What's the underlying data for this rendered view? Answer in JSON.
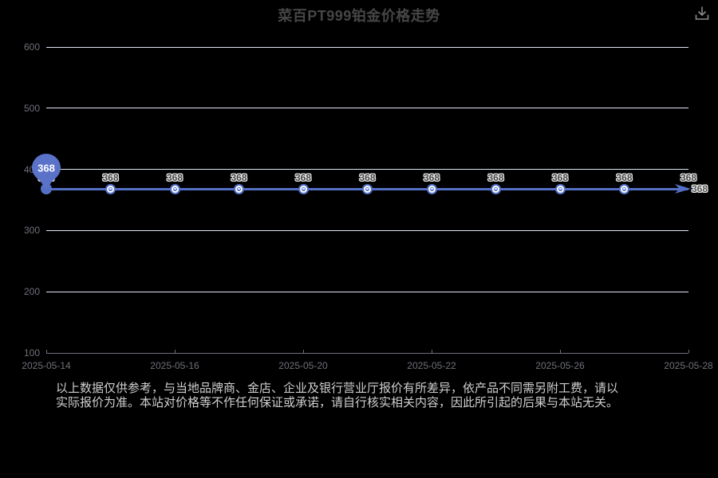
{
  "header": {
    "title": "菜百PT999铂金价格走势"
  },
  "chart_data": {
    "type": "line",
    "title": "菜百PT999铂金价格走势",
    "x_tick_labels": [
      "2025-05-14",
      "2025-05-16",
      "2025-05-20",
      "2025-05-22",
      "2025-05-26",
      "2025-05-28"
    ],
    "y_tick_labels": [
      "100",
      "200",
      "300",
      "400",
      "500",
      "600"
    ],
    "ylim": [
      100,
      600
    ],
    "xlabel": "",
    "ylabel": "",
    "grid": true,
    "legend_position": "none",
    "num_points": 11,
    "values": [
      368,
      368,
      368,
      368,
      368,
      368,
      368,
      368,
      368,
      368,
      368
    ],
    "end_label": "368",
    "pin": {
      "point_index": 0,
      "label": "368"
    },
    "colors": {
      "series": "#5470C6",
      "grid_line": "#E0E6F1",
      "axis": "#6E7079",
      "background": "#000000",
      "pin_fill": "#5B72C9",
      "icon": "#8a8a8a"
    }
  },
  "footer": {
    "line1": "以上数据仅供参考，与当地品牌商、金店、企业及银行营业厅报价有所差异，依产品不同需另附工费，请以",
    "line2": "实际报价为准。本站对价格等不作任何保证或承诺，请自行核实相关内容，因此所引起的后果与本站无关。"
  }
}
